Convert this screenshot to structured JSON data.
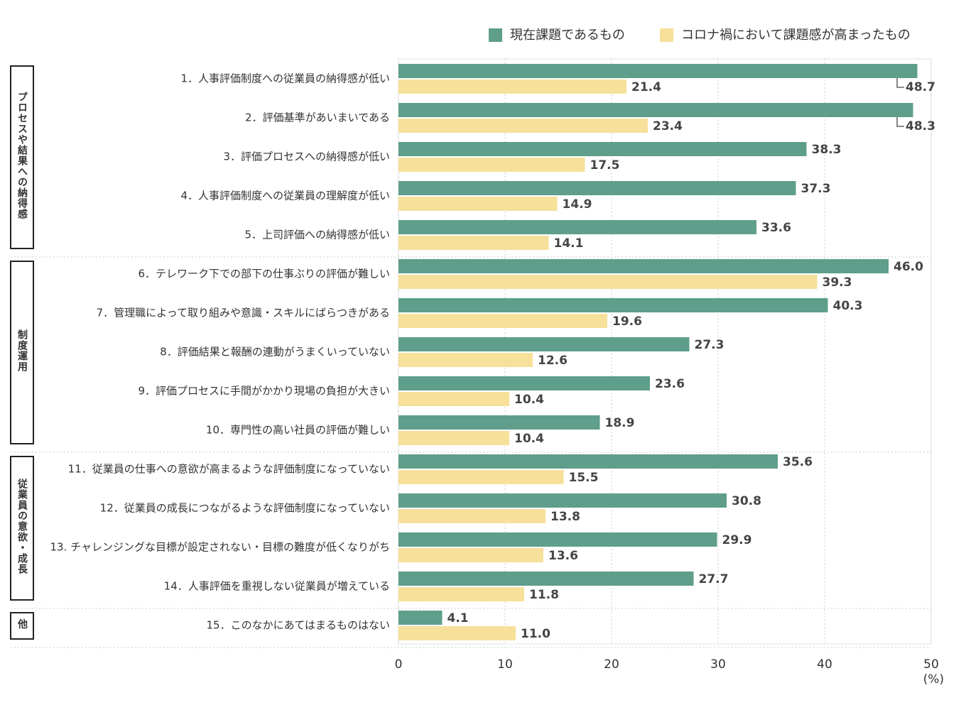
{
  "chart_data": {
    "type": "bar",
    "orientation": "horizontal",
    "categories": [
      "1．人事評価制度への従業員の納得感が低い",
      "2．評価基準があいまいである",
      "3．評価プロセスへの納得感が低い",
      "4．人事評価制度への従業員の理解度が低い",
      "5．上司評価への納得感が低い",
      "6．テレワーク下での部下の仕事ぶりの評価が難しい",
      "7．管理職によって取り組みや意識・スキルにばらつきがある",
      "8．評価結果と報酬の連動がうまくいっていない",
      "9．評価プロセスに手間がかかり現場の負担が大きい",
      "10．専門性の高い社員の評価が難しい",
      "11．従業員の仕事への意欲が高まるような評価制度になっていない",
      "12．従業員の成長につながるような評価制度になっていない",
      "13. チャレンジングな目標が設定されない・目標の難度が低くなりがち",
      "14．人事評価を重視しない従業員が増えている",
      "15．このなかにあてはまるものはない"
    ],
    "groups": [
      "プロセスや結果への納得感",
      "制度運用",
      "従業員の意欲・成長",
      "他"
    ],
    "series": [
      {
        "name": "現在課題であるもの",
        "color": "#5e9e8b",
        "values": [
          48.7,
          48.3,
          38.3,
          37.3,
          33.6,
          46.0,
          40.3,
          27.3,
          23.6,
          18.9,
          35.6,
          30.8,
          29.9,
          27.7,
          4.1
        ],
        "value_labels": [
          "48.7",
          "48.3",
          "38.3",
          "37.3",
          "33.6",
          "46.0",
          "40.3",
          "27.3",
          "23.6",
          "18.9",
          "35.6",
          "30.8",
          "29.9",
          "27.7",
          "4.1"
        ]
      },
      {
        "name": "コロナ禍において課題感が高まったもの",
        "color": "#f6e09a",
        "values": [
          21.4,
          23.4,
          17.5,
          14.9,
          14.1,
          39.3,
          19.6,
          12.6,
          10.4,
          10.4,
          15.5,
          13.8,
          13.6,
          11.8,
          11.0
        ],
        "value_labels": [
          "21.4",
          "23.4",
          "17.5",
          "14.9",
          "14.1",
          "39.3",
          "19.6",
          "12.6",
          "10.4",
          "10.4",
          "15.5",
          "13.8",
          "13.6",
          "11.8",
          "11.0"
        ]
      }
    ],
    "xlim": [
      0,
      50
    ],
    "xticks": [
      0,
      10,
      20,
      30,
      40,
      50
    ],
    "xlabel": "(%)",
    "grid": true,
    "legend": "top-right"
  }
}
